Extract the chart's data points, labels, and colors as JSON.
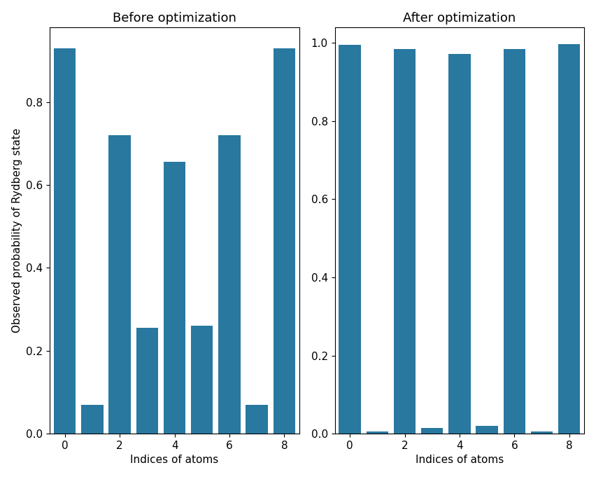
{
  "before_values": [
    0.93,
    0.07,
    0.72,
    0.255,
    0.655,
    0.26,
    0.72,
    0.07,
    0.93
  ],
  "after_values": [
    0.995,
    0.005,
    0.985,
    0.015,
    0.972,
    0.02,
    0.985,
    0.005,
    0.997
  ],
  "indices": [
    0,
    1,
    2,
    3,
    4,
    5,
    6,
    7,
    8
  ],
  "xtick_labels": [
    "0",
    "2",
    "4",
    "6",
    "8"
  ],
  "xtick_positions": [
    0,
    2,
    4,
    6,
    8
  ],
  "title_before": "Before optimization",
  "title_after": "After optimization",
  "ylabel": "Observed probability of Rydberg state",
  "xlabel": "Indices of atoms",
  "bar_color": "#2878a0",
  "bar_width": 0.8,
  "ylim_before": [
    0,
    0.98
  ],
  "ylim_after": [
    0,
    1.04
  ],
  "figsize": [
    8.52,
    6.81
  ],
  "dpi": 100,
  "title_fontsize": 13,
  "label_fontsize": 11,
  "tick_fontsize": 11,
  "xlim": [
    -0.55,
    8.55
  ]
}
